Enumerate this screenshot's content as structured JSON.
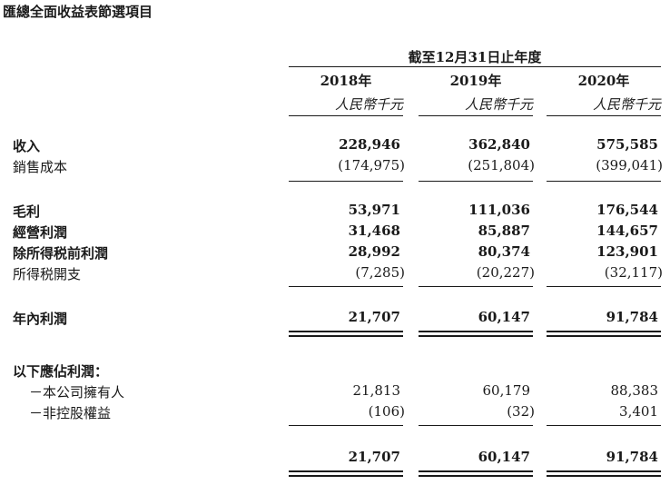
{
  "title": "匯總全面收益表節選項目",
  "period_header": "截至12月31日止年度",
  "columns": [
    {
      "year": "2018年",
      "unit": "人民幣千元"
    },
    {
      "year": "2019年",
      "unit": "人民幣千元"
    },
    {
      "year": "2020年",
      "unit": "人民幣千元"
    }
  ],
  "rows": [
    {
      "label": "收入",
      "values": [
        "228,946",
        "362,840",
        "575,585"
      ]
    },
    {
      "label": "銷售成本",
      "values": [
        "(174,975)",
        "(251,804)",
        "(399,041)"
      ]
    },
    {
      "label": "毛利",
      "values": [
        "53,971",
        "111,036",
        "176,544"
      ]
    },
    {
      "label": "經營利潤",
      "values": [
        "31,468",
        "85,887",
        "144,657"
      ]
    },
    {
      "label": "除所得税前利潤",
      "values": [
        "28,992",
        "80,374",
        "123,901"
      ]
    },
    {
      "label": "所得税開支",
      "values": [
        "(7,285)",
        "(20,227)",
        "(32,117)"
      ]
    },
    {
      "label": "年內利潤",
      "values": [
        "21,707",
        "60,147",
        "91,784"
      ]
    },
    {
      "label": "以下應佔利潤：",
      "values": [
        "",
        "",
        ""
      ]
    },
    {
      "label": "－本公司擁有人",
      "values": [
        "21,813",
        "60,179",
        "88,383"
      ]
    },
    {
      "label": "－非控股權益",
      "values": [
        "(106)",
        "(32)",
        "3,401"
      ]
    },
    {
      "label": "",
      "values": [
        "21,707",
        "60,147",
        "91,784"
      ]
    }
  ]
}
